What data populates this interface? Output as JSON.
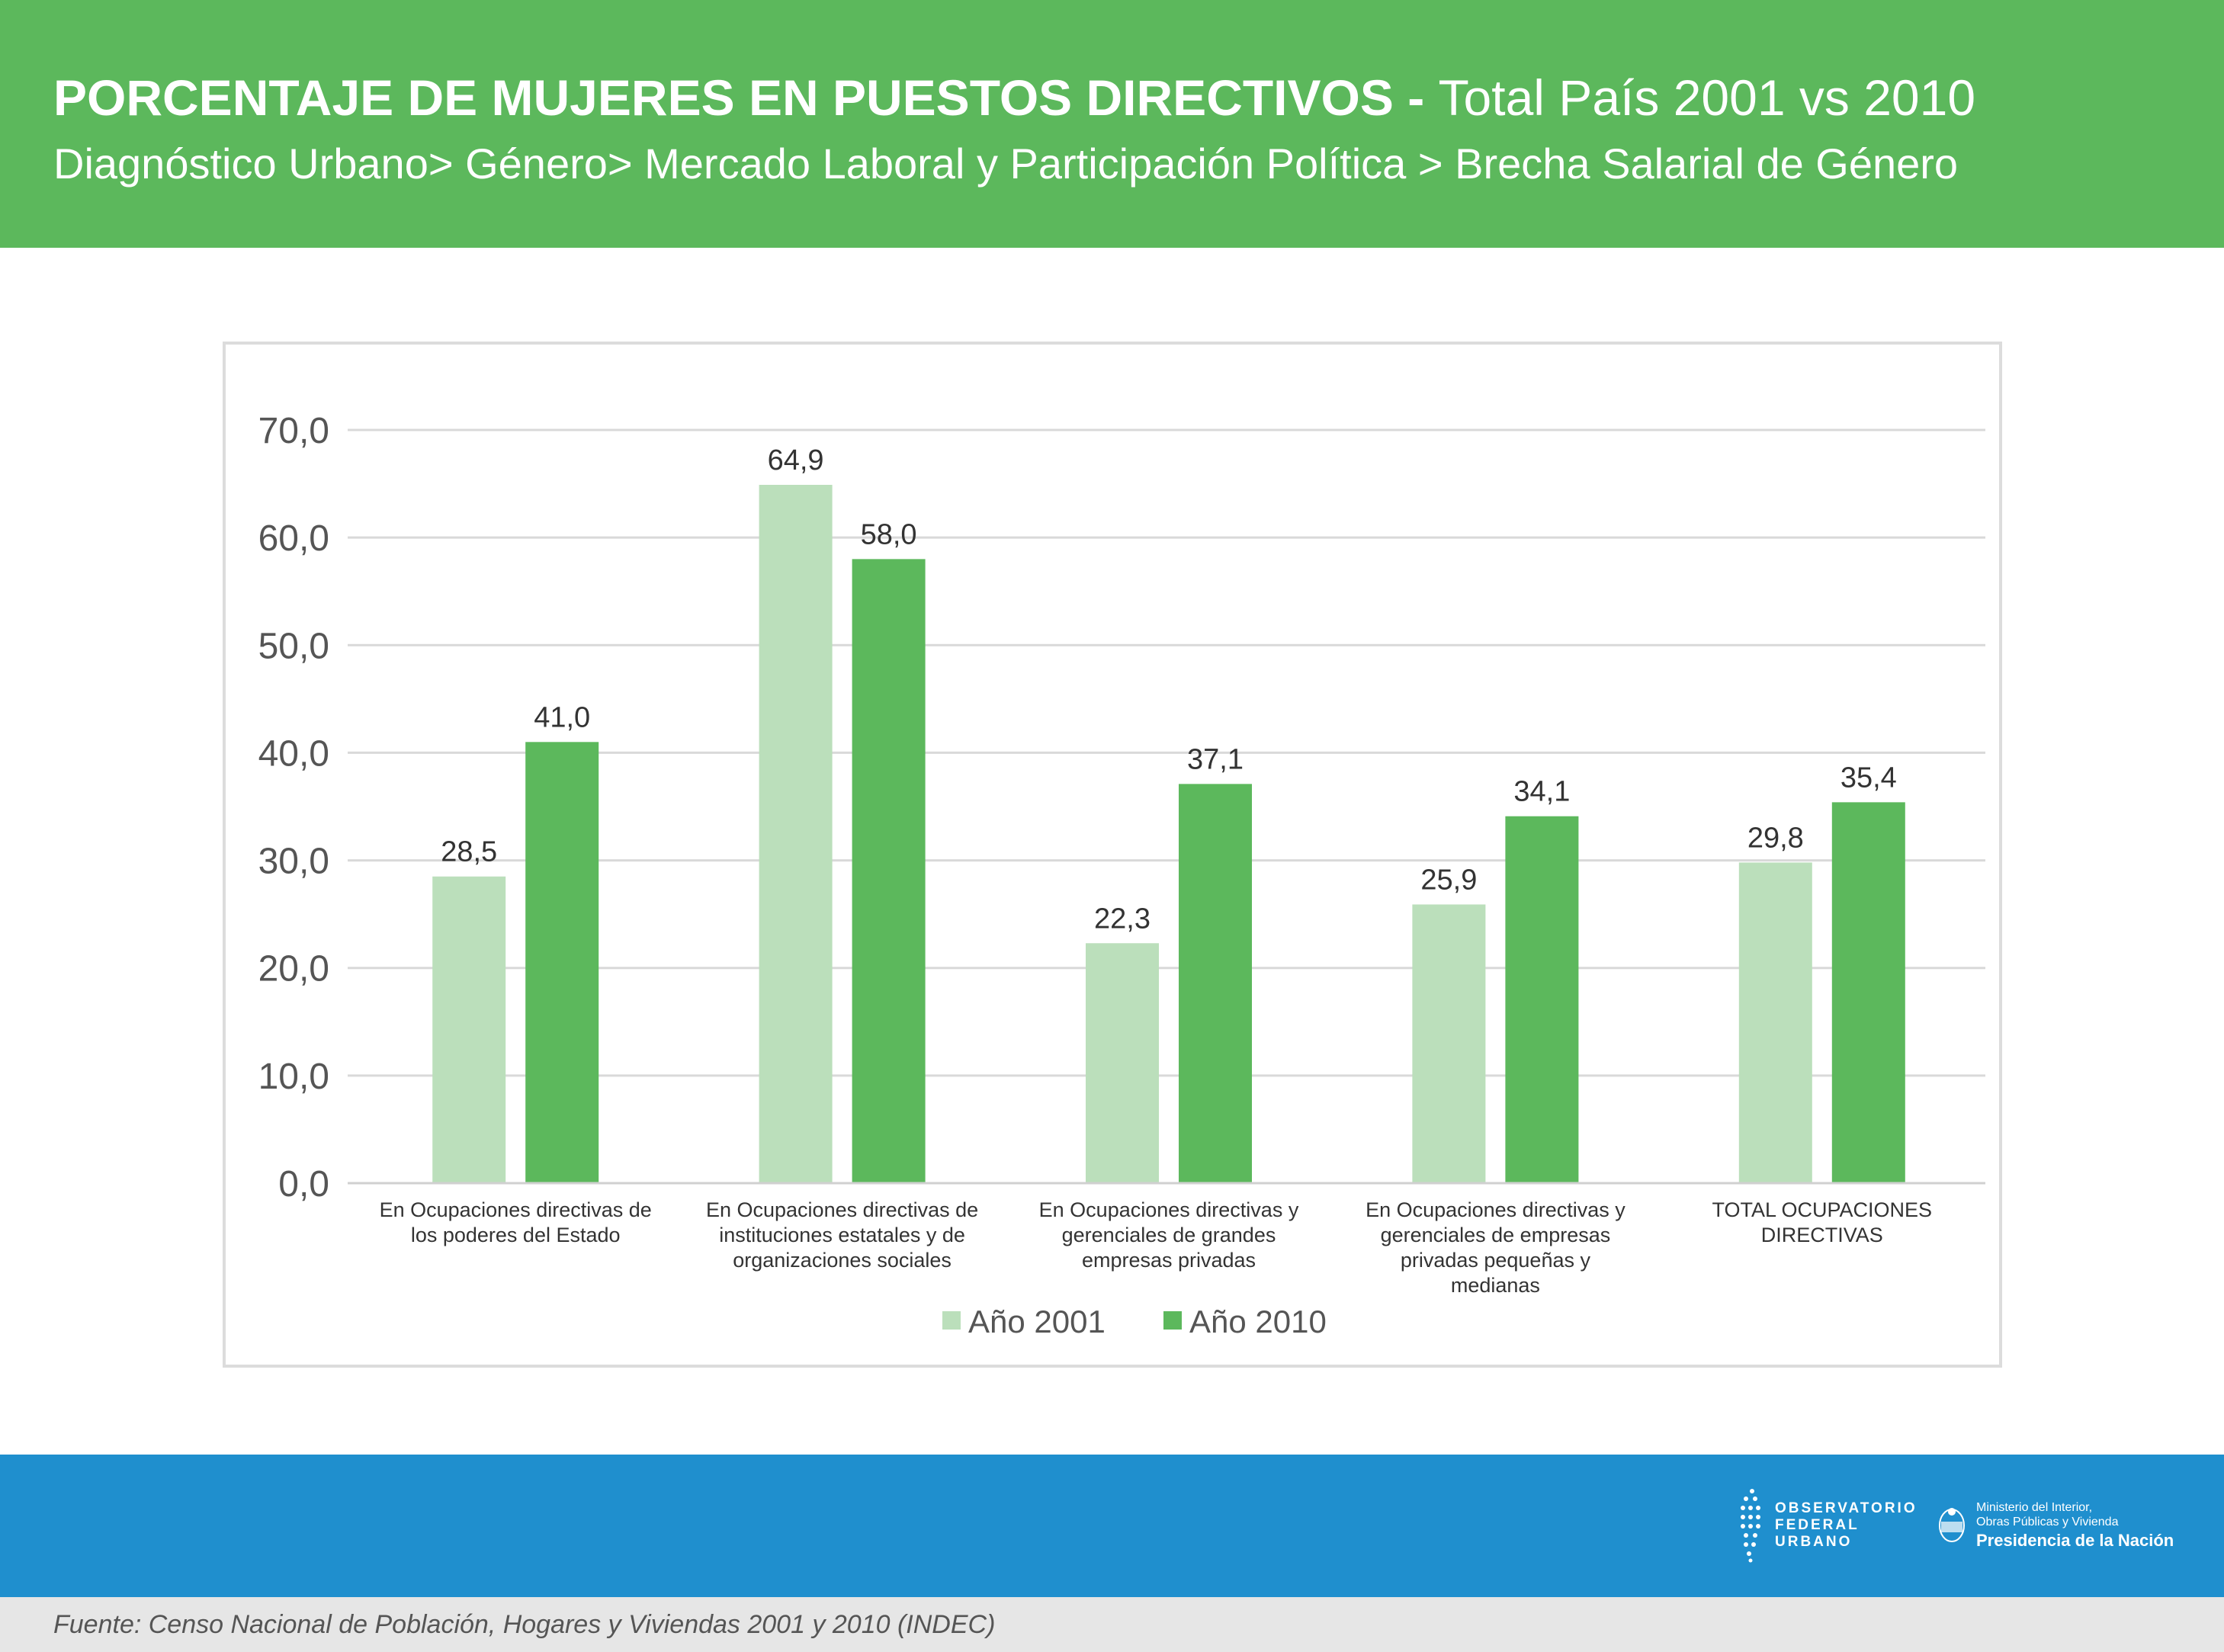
{
  "header": {
    "title_bold": "PORCENTAJE DE MUJERES EN PUESTOS DIRECTIVOS - ",
    "title_light": "Total País 2001 vs 2010",
    "subtitle": "Diagnóstico Urbano> Género> Mercado Laboral y Participación Política > Brecha Salarial de Género",
    "background_color": "#5cb85c"
  },
  "chart_data": {
    "type": "bar",
    "categories": [
      [
        "En Ocupaciones directivas de",
        "los poderes del Estado"
      ],
      [
        "En Ocupaciones directivas de",
        "instituciones estatales y de",
        "organizaciones sociales"
      ],
      [
        "En Ocupaciones directivas y",
        "gerenciales de grandes",
        "empresas privadas"
      ],
      [
        "En Ocupaciones directivas y",
        "gerenciales de empresas",
        "privadas pequeñas y",
        "medianas"
      ],
      [
        "TOTAL OCUPACIONES",
        "DIRECTIVAS"
      ]
    ],
    "series": [
      {
        "name": "Año 2001",
        "color": "#bbdfbb",
        "values": [
          28.5,
          64.9,
          22.3,
          25.9,
          29.8
        ],
        "labels": [
          "28,5",
          "64,9",
          "22,3",
          "25,9",
          "29,8"
        ]
      },
      {
        "name": "Año  2010",
        "color": "#5cb85c",
        "values": [
          41.0,
          58.0,
          37.1,
          34.1,
          35.4
        ],
        "labels": [
          "41,0",
          "58,0",
          "37,1",
          "34,1",
          "35,4"
        ]
      }
    ],
    "yticks": [
      0,
      10,
      20,
      30,
      40,
      50,
      60,
      70
    ],
    "ytick_labels": [
      "0,0",
      "10,0",
      "20,0",
      "30,0",
      "40,0",
      "50,0",
      "60,0",
      "70,0"
    ],
    "ylim": [
      0,
      70
    ],
    "grid": true,
    "legend_position": "bottom-center"
  },
  "footer": {
    "band_color": "#1f8fce",
    "logo_ofu": "OBSERVATORIO\nFEDERAL\nURBANO",
    "logo_min_line1": "Ministerio del Interior,",
    "logo_min_line2": "Obras Públicas y Vivienda",
    "logo_min_line3": "Presidencia de la Nación",
    "source": "Fuente: Censo Nacional de Población, Hogares y Viviendas 2001 y 2010 (INDEC)"
  }
}
